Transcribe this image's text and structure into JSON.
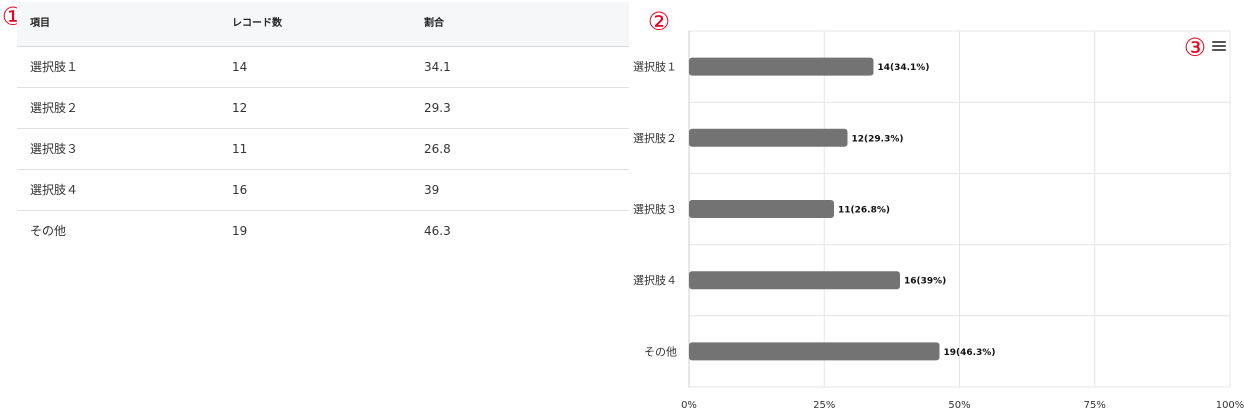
{
  "markers": {
    "table": "①",
    "chart": "②",
    "menu": "③"
  },
  "table": {
    "headers": [
      "項目",
      "レコード数",
      "割合"
    ],
    "rows": [
      {
        "item": "選択肢１",
        "count": "14",
        "ratio": "34.1"
      },
      {
        "item": "選択肢２",
        "count": "12",
        "ratio": "29.3"
      },
      {
        "item": "選択肢３",
        "count": "11",
        "ratio": "26.8"
      },
      {
        "item": "選択肢４",
        "count": "16",
        "ratio": "39"
      },
      {
        "item": "その他",
        "count": "19",
        "ratio": "46.3"
      }
    ]
  },
  "colors": {
    "bar": "#737373",
    "marker": "#e8001c",
    "grid": "#e6e6e6"
  },
  "chart_data": {
    "type": "bar",
    "orientation": "horizontal",
    "categories": [
      "選択肢１",
      "選択肢２",
      "選択肢３",
      "選択肢４",
      "その他"
    ],
    "values": [
      34.1,
      29.3,
      26.8,
      39,
      46.3
    ],
    "data_labels": [
      "14(34.1%)",
      "12(29.3%)",
      "11(26.8%)",
      "16(39%)",
      "19(46.3%)"
    ],
    "x_ticks": [
      "0%",
      "25%",
      "50%",
      "75%",
      "100%"
    ],
    "xlim": [
      0,
      100
    ],
    "grid": true,
    "title": "",
    "xlabel": "",
    "ylabel": ""
  }
}
